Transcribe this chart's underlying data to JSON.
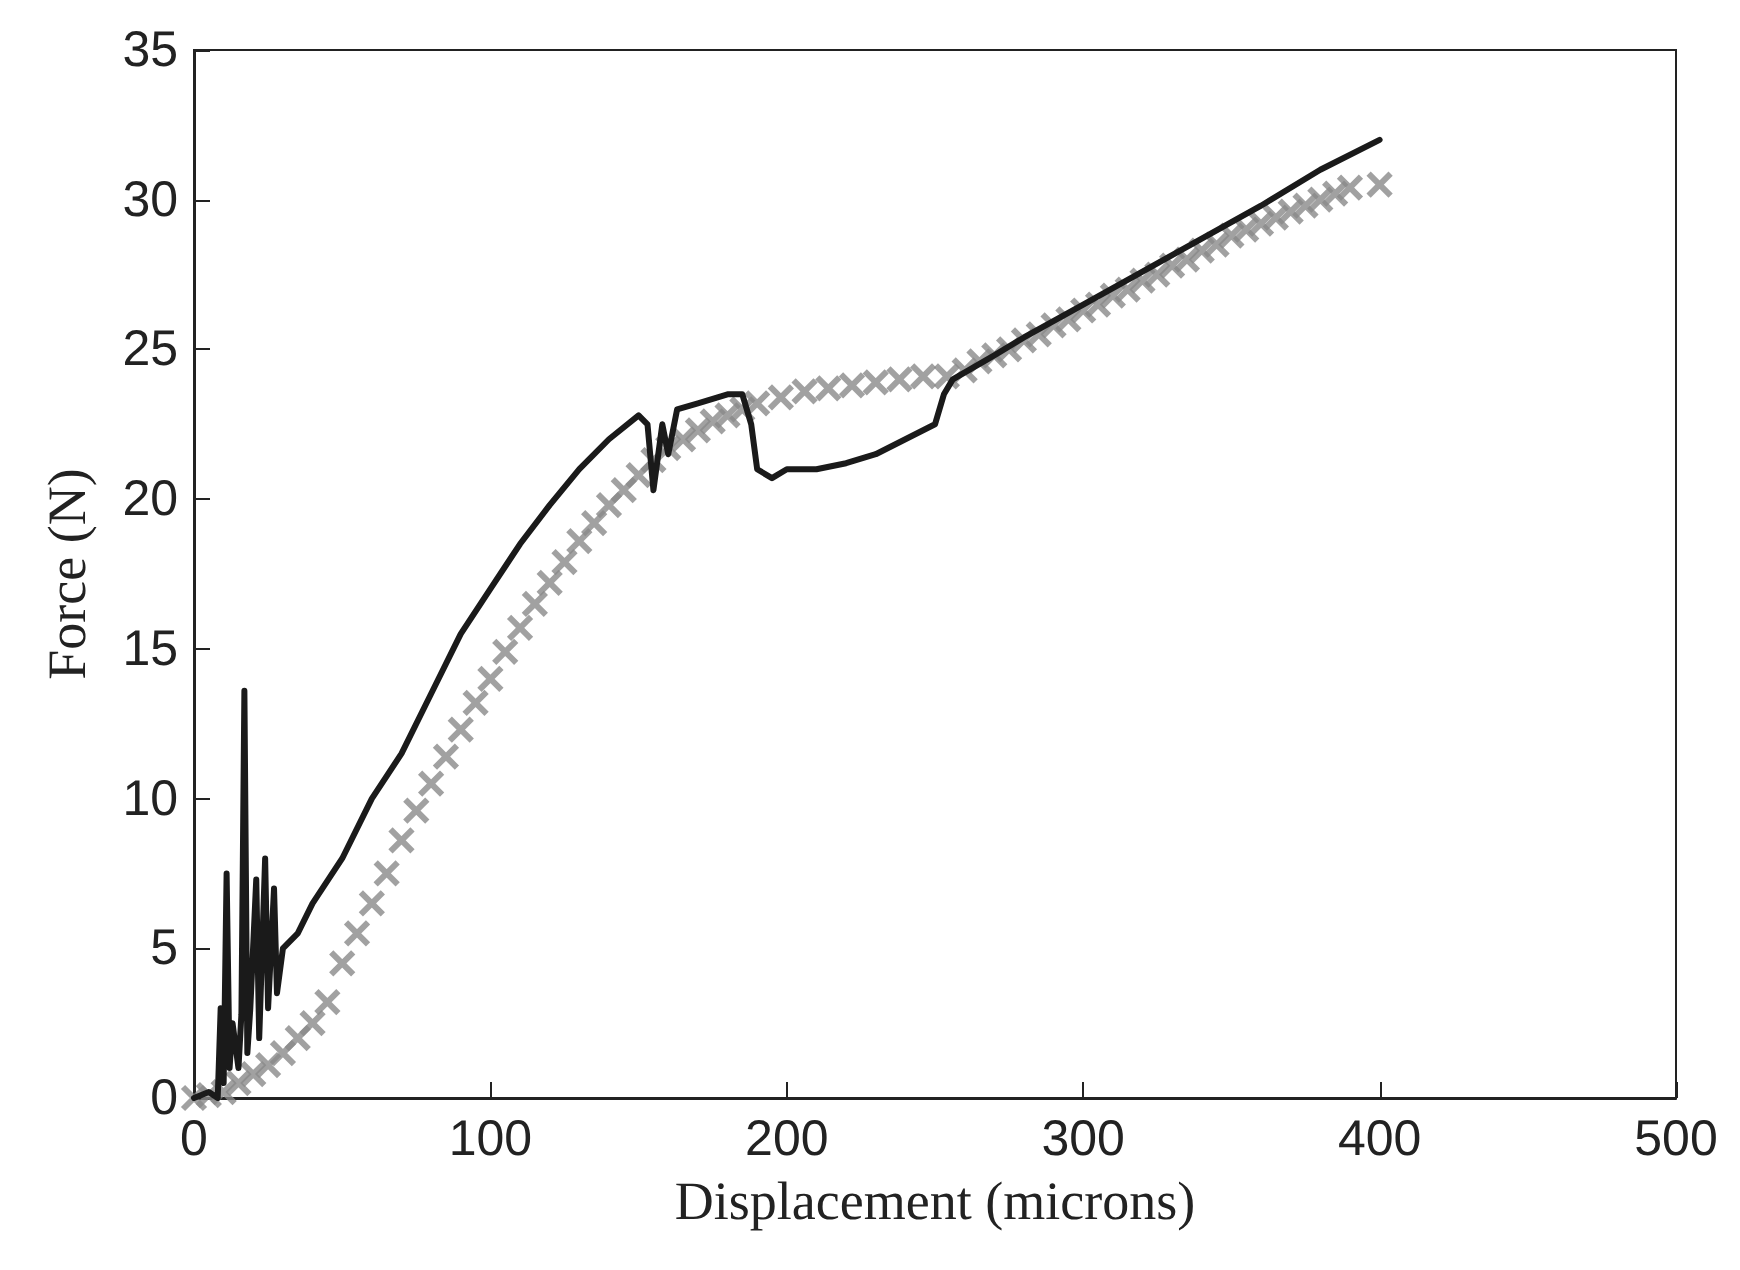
{
  "chart_data": {
    "type": "line",
    "xlabel": "Displacement (microns)",
    "ylabel": "Force (N)",
    "xlim": [
      0,
      500
    ],
    "xticks": [
      0,
      100,
      200,
      300,
      400,
      500
    ],
    "ylim": [
      0,
      35
    ],
    "yticks": [
      0,
      5,
      10,
      15,
      20,
      25,
      30,
      35
    ],
    "grid": false,
    "series": [
      {
        "type": "scatter",
        "marker": "cross",
        "color": "#8a8a8a",
        "x": [
          0,
          5,
          10,
          15,
          20,
          25,
          30,
          35,
          40,
          45,
          50,
          55,
          60,
          65,
          70,
          75,
          80,
          85,
          90,
          95,
          100,
          105,
          110,
          115,
          120,
          125,
          130,
          135,
          140,
          145,
          150,
          155,
          160,
          165,
          170,
          175,
          180,
          185,
          190,
          198,
          206,
          214,
          222,
          230,
          238,
          246,
          254,
          260,
          265,
          270,
          275,
          280,
          285,
          290,
          295,
          300,
          305,
          310,
          315,
          320,
          325,
          330,
          335,
          340,
          345,
          350,
          355,
          360,
          365,
          370,
          375,
          380,
          385,
          390,
          400
        ],
        "values": [
          0,
          0.1,
          0.2,
          0.5,
          0.8,
          1.1,
          1.5,
          2,
          2.5,
          3.2,
          4.5,
          5.5,
          6.5,
          7.5,
          8.6,
          9.6,
          10.5,
          11.4,
          12.3,
          13.2,
          14,
          14.9,
          15.7,
          16.5,
          17.2,
          17.9,
          18.6,
          19.2,
          19.8,
          20.3,
          20.8,
          21.3,
          21.7,
          22,
          22.3,
          22.6,
          22.8,
          23,
          23.2,
          23.4,
          23.6,
          23.7,
          23.8,
          23.9,
          24,
          24.1,
          24.1,
          24.3,
          24.6,
          24.8,
          25,
          25.3,
          25.5,
          25.8,
          26,
          26.3,
          26.5,
          26.8,
          27,
          27.3,
          27.5,
          27.8,
          28,
          28.3,
          28.5,
          28.8,
          29,
          29.2,
          29.4,
          29.6,
          29.8,
          30,
          30.2,
          30.4,
          30.5
        ]
      },
      {
        "marker": "none",
        "line_style": "solid",
        "color": "#1a1a1a",
        "x": [
          0,
          5,
          8,
          9,
          10,
          11,
          12,
          13,
          15,
          16,
          17,
          18,
          19,
          21,
          22,
          24,
          25,
          27,
          28,
          30,
          35,
          40,
          50,
          60,
          70,
          80,
          90,
          100,
          110,
          120,
          130,
          140,
          150,
          153,
          155,
          158,
          160,
          163,
          170,
          180,
          185,
          188,
          190,
          195,
          200,
          210,
          220,
          230,
          240,
          250,
          253,
          256,
          270,
          280,
          300,
          320,
          340,
          360,
          380,
          400
        ],
        "values": [
          0,
          0.2,
          0,
          3,
          0.5,
          7.5,
          1,
          2.5,
          1,
          2.8,
          13.6,
          1.5,
          3,
          7.3,
          2,
          8,
          3,
          7,
          3.5,
          5,
          5.5,
          6.5,
          8,
          10,
          11.5,
          13.5,
          15.5,
          17,
          18.5,
          19.8,
          21,
          22,
          22.8,
          22.5,
          20.3,
          22.5,
          21.5,
          23,
          23.2,
          23.5,
          23.5,
          22.5,
          21,
          20.7,
          21,
          21,
          21.2,
          21.5,
          22,
          22.5,
          23.5,
          24,
          24.8,
          25.4,
          26.5,
          27.6,
          28.7,
          29.8,
          31,
          32
        ]
      }
    ]
  }
}
